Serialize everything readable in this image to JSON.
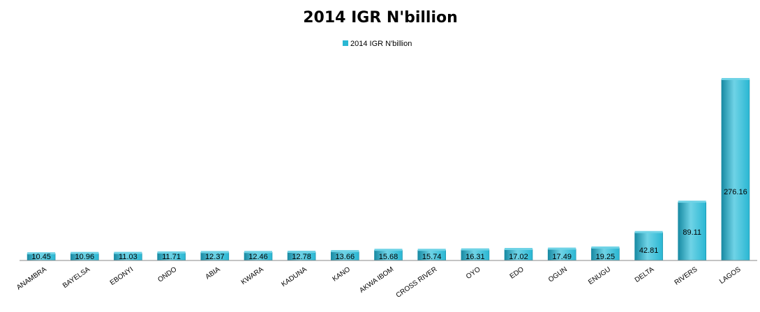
{
  "chart_data": {
    "type": "bar",
    "title": "2014 IGR N'billion",
    "legend": {
      "position": "top",
      "entries": [
        "2014 IGR N'billion"
      ]
    },
    "categories": [
      "ANAMBRA",
      "BAYELSA",
      "EBONYI",
      "ONDO",
      "ABIA",
      "KWARA",
      "KADUNA",
      "KANO",
      "AKWA IBOM",
      "CROSS RIVER",
      "OYO",
      "EDO",
      "OGUN",
      "ENUGU",
      "DELTA",
      "RIVERS",
      "LAGOS"
    ],
    "series": [
      {
        "name": "2014 IGR N'billion",
        "values": [
          10.45,
          10.96,
          11.03,
          11.71,
          12.37,
          12.46,
          12.78,
          13.66,
          15.68,
          15.74,
          16.31,
          17.02,
          17.49,
          19.25,
          42.81,
          89.11,
          276.16
        ]
      }
    ],
    "value_labels": [
      "10.45",
      "10.96",
      "11.03",
      "11.71",
      "12.37",
      "12.46",
      "12.78",
      "13.66",
      "15.68",
      "15.74",
      "16.31",
      "17.02",
      "17.49",
      "19.25",
      "42.81",
      "89.11",
      "276.16"
    ],
    "ylim": [
      0,
      276.16
    ],
    "grid": false,
    "colors": {
      "bar": "#2ab7d3",
      "bar_light": "#6fd3e6",
      "bar_dark": "#178aa3",
      "axis": "#888888"
    }
  }
}
